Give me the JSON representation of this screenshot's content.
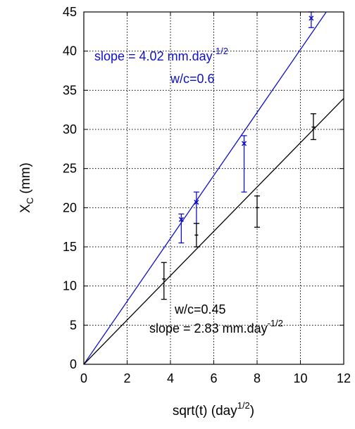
{
  "chart_data": {
    "type": "scatter",
    "xlim": [
      0,
      12
    ],
    "ylim": [
      0,
      45
    ],
    "x_ticks": [
      "0",
      "2",
      "4",
      "6",
      "8",
      "10",
      "12"
    ],
    "y_ticks": [
      "0",
      "5",
      "10",
      "15",
      "20",
      "25",
      "30",
      "35",
      "40",
      "45"
    ],
    "grid": true,
    "x_label": {
      "main": "sqrt(t) (day",
      "sup": "1/2",
      "end": ")"
    },
    "y_label": {
      "main": "X",
      "sub": "C",
      "end": " (mm)"
    },
    "series": [
      {
        "color": "#1010c8",
        "marker": "x",
        "points": [
          {
            "x": 4.5,
            "y": 18.5,
            "low": 15.5,
            "high": 19.2
          },
          {
            "x": 5.2,
            "y": 20.7,
            "low": 18.0,
            "high": 22.0
          },
          {
            "x": 7.4,
            "y": 28.2,
            "low": 22.0,
            "high": 29.2
          },
          {
            "x": 10.5,
            "y": 44.2,
            "low": 43.0,
            "high": 45.0
          }
        ],
        "fit": {
          "slope": 4.02,
          "intercept": 0
        }
      },
      {
        "color": "#000000",
        "marker": "tick",
        "points": [
          {
            "x": 3.7,
            "y": 10.9,
            "low": 8.3,
            "high": 13.0
          },
          {
            "x": 5.2,
            "y": 16.5,
            "low": 15.0,
            "high": 18.0
          },
          {
            "x": 8.0,
            "y": 20.0,
            "low": 17.5,
            "high": 21.5
          },
          {
            "x": 10.6,
            "y": 30.3,
            "low": 28.7,
            "high": 32.0
          }
        ],
        "fit": {
          "slope": 2.83,
          "intercept": 0
        }
      }
    ],
    "annotations": {
      "blue_slope": {
        "main": "slope = 4.02 mm.day",
        "sup": "-1/2"
      },
      "blue_wc": "w/c=0.6",
      "black_wc": "w/c=0.45",
      "black_slope": {
        "main": "slope = 2.83 mm.day",
        "sup": "-1/2"
      }
    }
  }
}
